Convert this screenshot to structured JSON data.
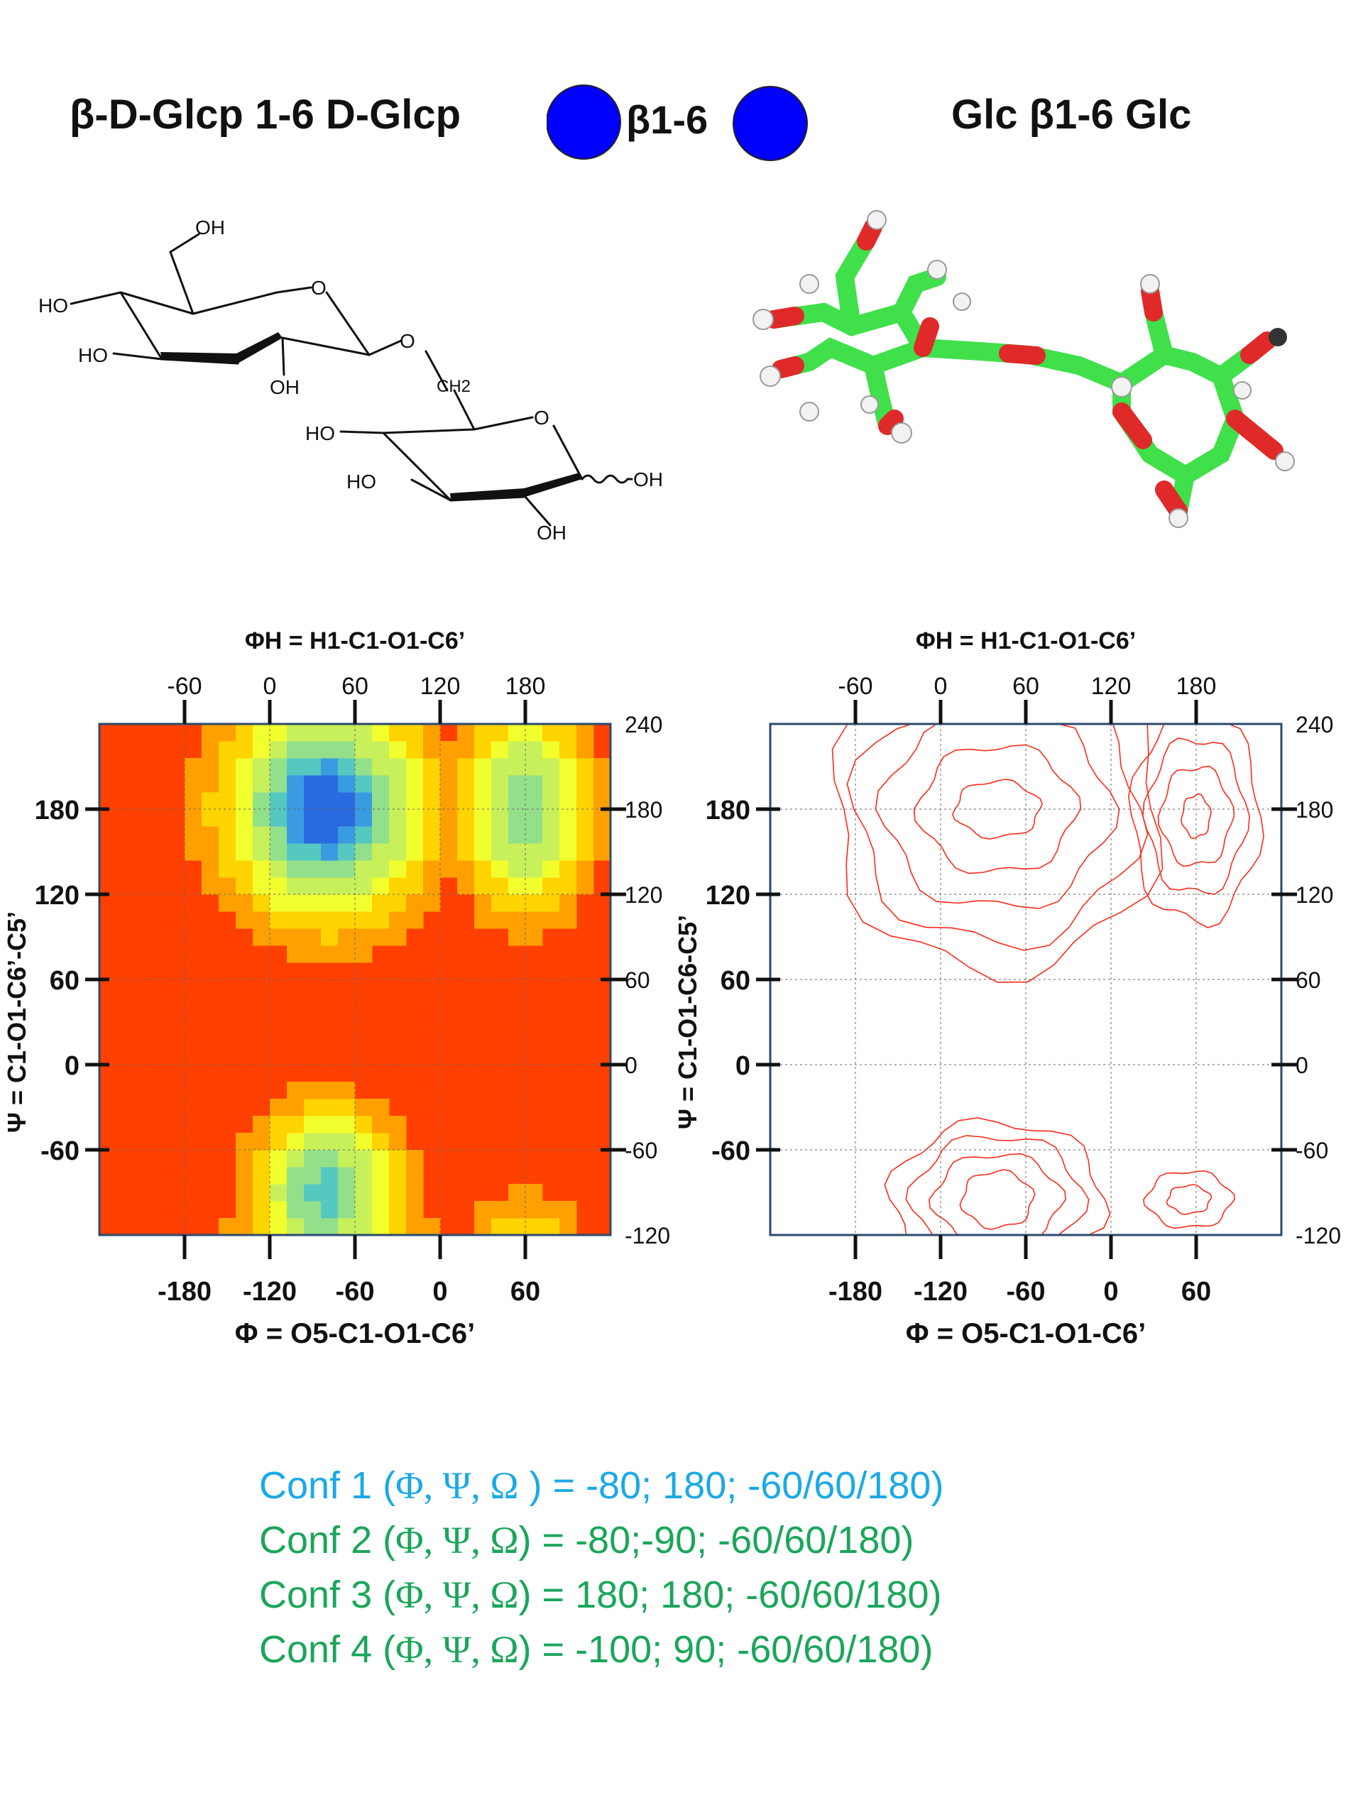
{
  "header": {
    "left": "β-D-Glcp 1-6 D-Glcp",
    "center": "β1-6",
    "right": "Glc β1-6 Glc"
  },
  "colors": {
    "snfg_glucose": "#0000ff",
    "conf1_text": "#1aa9e6",
    "conf_text": "#1aa65a",
    "contour": "#ff2a1a",
    "map_background": "#ff4000",
    "carbon": "#3fe04a",
    "oxygen": "#e02a2a",
    "hydrogen": "#f2f2f2"
  },
  "structure": {
    "labels": [
      "OH",
      "HO",
      "O",
      "HO",
      "OH",
      "O",
      "CH2",
      "HO",
      "O",
      "HO",
      "OH",
      "OH"
    ]
  },
  "plots": [
    {
      "kind": "heatmap",
      "top_title": "ΦH = H1-C1-O1-C6’",
      "top_ticks": [
        "-60",
        "0",
        "60",
        "120",
        "180"
      ],
      "left_title": "Ψ = C1-O1-C6’-C5’",
      "left_ticks": [
        "180",
        "120",
        "60",
        "0",
        "-60"
      ],
      "right_ticks": [
        "240",
        "180",
        "120",
        "60",
        "0",
        "-60",
        "-120"
      ],
      "bottom_ticks": [
        "-180",
        "-120",
        "-60",
        "0",
        "60"
      ],
      "bottom_title": "Φ = O5-C1-O1-C6’"
    },
    {
      "kind": "contour",
      "top_title": "ΦH = H1-C1-O1-C6’",
      "top_ticks": [
        "-60",
        "0",
        "60",
        "120",
        "180"
      ],
      "left_title": "Ψ = C1-O1-C6-C5’",
      "left_ticks": [
        "180",
        "120",
        "60",
        "0",
        "-60"
      ],
      "right_ticks": [
        "240",
        "180",
        "120",
        "60",
        "0",
        "-60",
        "-120"
      ],
      "bottom_ticks": [
        "-180",
        "-120",
        "-60",
        "0",
        "60"
      ],
      "bottom_title": "Φ = O5-C1-O1-C6’"
    }
  ],
  "chart_data": [
    {
      "type": "heatmap",
      "xlabel": "Φ = O5-C1-O1-C6’",
      "ylabel": "Ψ = C1-O1-C6’-C5’",
      "x2label": "ΦH = H1-C1-O1-C6’",
      "xlim": [
        -240,
        120
      ],
      "ylim": [
        -120,
        240
      ],
      "x2_ticks": [
        -60,
        0,
        60,
        120,
        180
      ],
      "y2_ticks": [
        240,
        180,
        120,
        60,
        0,
        -60,
        -120
      ],
      "energy_minima": [
        {
          "phi": -80,
          "psi": 180,
          "level": "lowest"
        },
        {
          "phi": -80,
          "psi": -90,
          "level": "low"
        },
        {
          "phi": 60,
          "psi": 180,
          "level": "low"
        }
      ],
      "grid": true
    },
    {
      "type": "contour",
      "xlabel": "Φ = O5-C1-O1-C6’",
      "ylabel": "Ψ = C1-O1-C6-C5’",
      "x2label": "ΦH = H1-C1-O1-C6’",
      "xlim": [
        -240,
        120
      ],
      "ylim": [
        -120,
        240
      ],
      "x2_ticks": [
        -60,
        0,
        60,
        120,
        180
      ],
      "y2_ticks": [
        240,
        180,
        120,
        60,
        0,
        -60,
        -120
      ],
      "grid": true
    }
  ],
  "conformers": [
    {
      "label": "Conf 1 (",
      "greek": "Φ, Ψ, Ω",
      "values": " ) = -80; 180; -60/60/180)",
      "color": "#1aa9e6"
    },
    {
      "label": "Conf 2 (",
      "greek": "Φ, Ψ, Ω",
      "values": ") =  -80;-90;  -60/60/180)",
      "color": "#1aa65a"
    },
    {
      "label": "Conf 3 (",
      "greek": "Φ, Ψ, Ω",
      "values": ") =  180; 180;  -60/60/180)",
      "color": "#1aa65a"
    },
    {
      "label": "Conf 4 (",
      "greek": "Φ, Ψ, Ω",
      "values": ") =  -100; 90;   -60/60/180)",
      "color": "#1aa65a"
    }
  ]
}
